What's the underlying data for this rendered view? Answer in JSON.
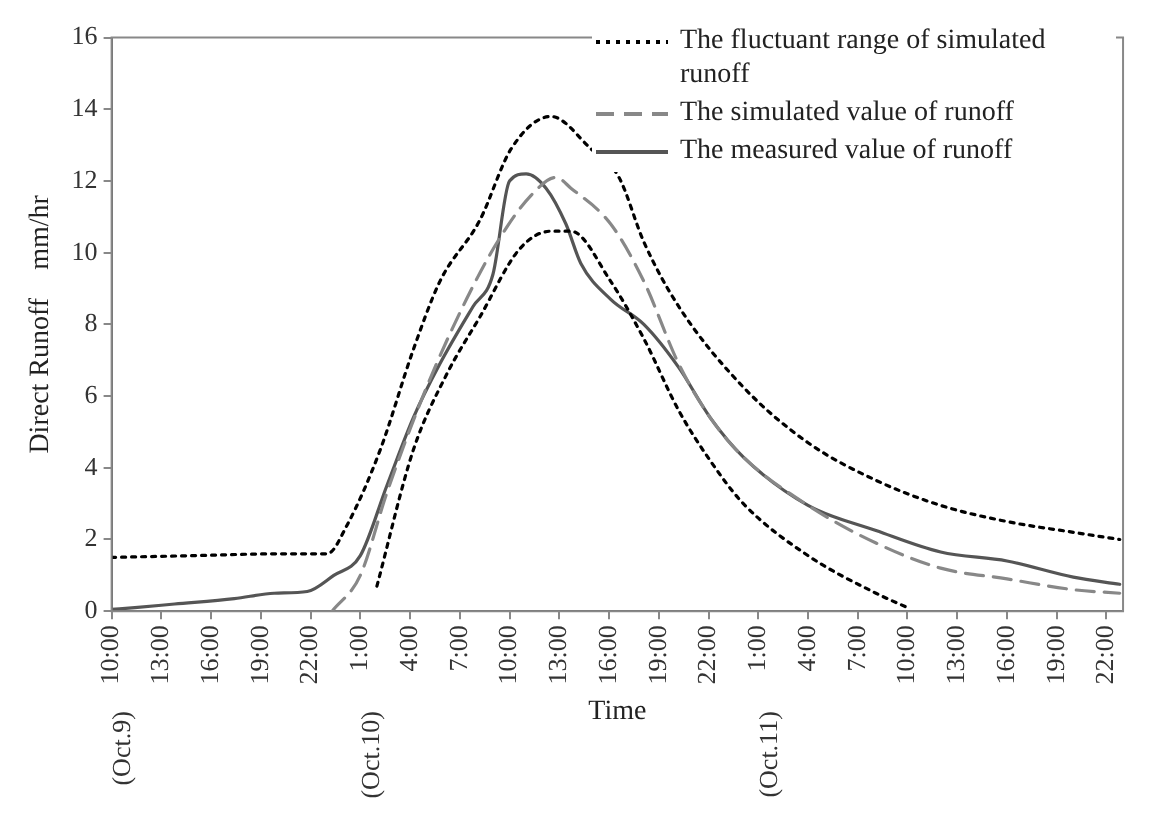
{
  "chart_data": {
    "type": "line",
    "xlabel": "Time",
    "ylabel": "Direct Runoff    mm/hr",
    "xlim": [
      "--10-09T10:00",
      "--10-11T23:00"
    ],
    "ylim": [
      0,
      16
    ],
    "yticks": [
      0,
      2,
      4,
      6,
      8,
      10,
      12,
      14,
      16
    ],
    "xticks": [
      {
        "value": "--10-09T10:00",
        "label": "10:00"
      },
      {
        "value": "--10-09T13:00",
        "label": "13:00"
      },
      {
        "value": "--10-09T16:00",
        "label": "16:00"
      },
      {
        "value": "--10-09T19:00",
        "label": "19:00"
      },
      {
        "value": "--10-09T22:00",
        "label": "22:00"
      },
      {
        "value": "--10-10T01:00",
        "label": "1:00"
      },
      {
        "value": "--10-10T04:00",
        "label": "4:00"
      },
      {
        "value": "--10-10T07:00",
        "label": "7:00"
      },
      {
        "value": "--10-10T10:00",
        "label": "10:00"
      },
      {
        "value": "--10-10T13:00",
        "label": "13:00"
      },
      {
        "value": "--10-10T16:00",
        "label": "16:00"
      },
      {
        "value": "--10-10T19:00",
        "label": "19:00"
      },
      {
        "value": "--10-10T22:00",
        "label": "22:00"
      },
      {
        "value": "--10-11T01:00",
        "label": "1:00"
      },
      {
        "value": "--10-11T04:00",
        "label": "4:00"
      },
      {
        "value": "--10-11T07:00",
        "label": "7:00"
      },
      {
        "value": "--10-11T10:00",
        "label": "10:00"
      },
      {
        "value": "--10-11T13:00",
        "label": "13:00"
      },
      {
        "value": "--10-11T16:00",
        "label": "16:00"
      },
      {
        "value": "--10-11T19:00",
        "label": "19:00"
      },
      {
        "value": "--10-11T22:00",
        "label": "22:00"
      }
    ],
    "annotations": [
      "(Oct.9)",
      "(Oct.10)",
      "(Oct.11)"
    ],
    "grid": false,
    "legend": "top right",
    "marker": "none",
    "series": [
      {
        "name": "The fluctuant range of simulated runoff",
        "color": "#000000",
        "line_style": "dotted",
        "x": [
          "--10-09T10:00",
          "--10-09T15:00",
          "--10-09T20:00",
          "--10-09T23:00",
          "--10-10T00:12",
          "--10-10T02:12",
          "--10-10T04:12",
          "--10-10T05:48",
          "--10-10T08:12",
          "--10-10T10:06",
          "--10-10T12:30",
          "--10-10T14:54",
          "--10-10T16:36",
          "--10-10T18:06",
          "--10-10T20:12",
          "--10-11T00:06",
          "--10-11T04:00",
          "--10-11T08:06",
          "--10-11T12:00",
          "--10-11T16:00",
          "--10-11T20:00",
          "--10-11T22:48"
        ],
        "values": [
          1.5,
          1.55,
          1.6,
          1.6,
          2.4,
          4.5,
          7.3,
          9.2,
          10.9,
          12.9,
          13.8,
          12.9,
          12.1,
          10.3,
          8.5,
          6.25,
          4.7,
          3.65,
          2.95,
          2.5,
          2.2,
          2.0
        ]
      },
      {
        "color": "#000000",
        "line_style": "dotted",
        "x": [
          "--10-10T02:00",
          "--10-10T04:12",
          "--10-10T06:12",
          "--10-10T08:12",
          "--10-10T10:36",
          "--10-10T12:30",
          "--10-10T13:42",
          "--10-10T16:06",
          "--10-10T18:06",
          "--10-10T20:12",
          "--10-10T22:06",
          "--10-11T00:06",
          "--10-11T04:00",
          "--10-11T08:06",
          "--10-11T10:00"
        ],
        "values": [
          0.7,
          4.5,
          6.6,
          8.2,
          10.1,
          10.6,
          10.6,
          9.2,
          7.6,
          5.6,
          4.2,
          3.0,
          1.55,
          0.5,
          0.1
        ]
      },
      {
        "name": "The simulated value of runoff",
        "color": "#888888",
        "line_style": "dashed",
        "x": [
          "--10-09T23:18",
          "--10-10T01:00",
          "--10-10T02:36",
          "--10-10T05:00",
          "--10-10T07:24",
          "--10-10T09:24",
          "--10-10T11:18",
          "--10-10T12:48",
          "--10-10T13:42",
          "--10-10T16:06",
          "--10-10T18:06",
          "--10-10T20:12",
          "--10-10T22:06",
          "--10-11T00:06",
          "--10-11T04:00",
          "--10-11T08:06",
          "--10-11T12:00",
          "--10-11T16:00",
          "--10-11T20:00",
          "--10-11T22:48"
        ],
        "values": [
          0,
          1.0,
          3.3,
          6.25,
          8.7,
          10.4,
          11.6,
          12.1,
          11.8,
          10.8,
          9.2,
          6.9,
          5.4,
          4.3,
          2.95,
          1.9,
          1.2,
          0.9,
          0.6,
          0.5
        ]
      },
      {
        "name": "The measured value of runoff",
        "color": "#555555",
        "line_style": "solid",
        "x": [
          "--10-09T10:00",
          "--10-09T11:24",
          "--10-09T13:48",
          "--10-09T17:24",
          "--10-09T19:48",
          "--10-09T21:48",
          "--10-09T23:24",
          "--10-10T01:00",
          "--10-10T02:36",
          "--10-10T04:12",
          "--10-10T05:48",
          "--10-10T07:48",
          "--10-10T09:00",
          "--10-10T10:00",
          "--10-10T11:00",
          "--10-10T12:12",
          "--10-10T13:24",
          "--10-10T14:18",
          "--10-10T16:06",
          "--10-10T18:06",
          "--10-10T20:12",
          "--10-10T22:06",
          "--10-11T00:06",
          "--10-11T04:00",
          "--10-11T08:06",
          "--10-11T12:00",
          "--10-11T16:00",
          "--10-11T20:00",
          "--10-11T22:48"
        ],
        "values": [
          0.05,
          0.1,
          0.2,
          0.35,
          0.5,
          0.55,
          1.0,
          1.55,
          3.5,
          5.4,
          6.9,
          8.5,
          9.4,
          12.0,
          12.2,
          11.8,
          10.8,
          9.7,
          8.7,
          8.0,
          6.8,
          5.4,
          4.3,
          2.95,
          2.25,
          1.65,
          1.4,
          0.95,
          0.75
        ]
      }
    ]
  }
}
